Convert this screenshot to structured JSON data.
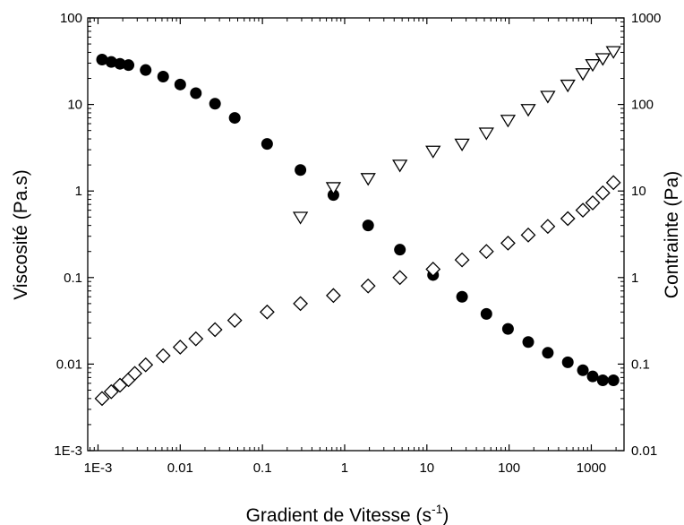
{
  "chart_data": {
    "type": "scatter",
    "title": "",
    "xlabel": "Gradient de Vitesse (s",
    "xlabel_sup": "-1",
    "xlabel_close": ")",
    "ylabel": "Viscosité (Pa.s)",
    "y2label": "Contrainte (Pa)",
    "x_scale": "log",
    "y_scale": "log",
    "y2_scale": "log",
    "xlim": [
      0.00075,
      2500
    ],
    "ylim": [
      0.001,
      100
    ],
    "y2lim": [
      0.01,
      1000
    ],
    "x_ticks": [
      0.001,
      0.01,
      0.1,
      1,
      10,
      100,
      1000
    ],
    "x_tick_labels": [
      "1E-3",
      "0.01",
      "0.1",
      "1",
      "10",
      "100",
      "1000"
    ],
    "y_ticks": [
      0.001,
      0.01,
      0.1,
      1,
      10,
      100
    ],
    "y_tick_labels": [
      "1E-3",
      "0.01",
      "0.1",
      "1",
      "10",
      "100"
    ],
    "y2_ticks": [
      0.01,
      0.1,
      1,
      10,
      100,
      1000
    ],
    "y2_tick_labels": [
      "0.01",
      "0.1",
      "1",
      "10",
      "100",
      "1000"
    ],
    "grid": false,
    "series": [
      {
        "marker": "filled-circle",
        "axis": "left",
        "color": "#000000",
        "points": [
          [
            0.00112,
            33
          ],
          [
            0.00145,
            31
          ],
          [
            0.00185,
            29.5
          ],
          [
            0.00235,
            28.5
          ],
          [
            0.0038,
            25
          ],
          [
            0.0062,
            21
          ],
          [
            0.01,
            17
          ],
          [
            0.0155,
            13.5
          ],
          [
            0.0265,
            10.2
          ],
          [
            0.046,
            7
          ],
          [
            0.114,
            3.5
          ],
          [
            0.29,
            1.75
          ],
          [
            0.73,
            0.9
          ],
          [
            1.93,
            0.4
          ],
          [
            4.7,
            0.21
          ],
          [
            11.9,
            0.107
          ],
          [
            26.8,
            0.06
          ],
          [
            53,
            0.038
          ],
          [
            97,
            0.0255
          ],
          [
            171,
            0.018
          ],
          [
            296,
            0.0135
          ],
          [
            518,
            0.0105
          ],
          [
            790,
            0.0085
          ],
          [
            1040,
            0.0072
          ],
          [
            1380,
            0.0065
          ],
          [
            1860,
            0.0065
          ]
        ]
      },
      {
        "marker": "open-triangle-down",
        "axis": "right",
        "color": "#000000",
        "points": [
          [
            0.29,
            5
          ],
          [
            0.73,
            11
          ],
          [
            1.93,
            14
          ],
          [
            4.7,
            20
          ],
          [
            11.9,
            29
          ],
          [
            26.8,
            35
          ],
          [
            53,
            47
          ],
          [
            97,
            66
          ],
          [
            171,
            88
          ],
          [
            296,
            125
          ],
          [
            518,
            168
          ],
          [
            790,
            228
          ],
          [
            1040,
            290
          ],
          [
            1380,
            340
          ],
          [
            1860,
            410
          ]
        ]
      },
      {
        "marker": "open-diamond",
        "axis": "right",
        "color": "#000000",
        "points": [
          [
            0.00112,
            0.04
          ],
          [
            0.00145,
            0.048
          ],
          [
            0.00185,
            0.057
          ],
          [
            0.00235,
            0.066
          ],
          [
            0.0028,
            0.078
          ],
          [
            0.0038,
            0.098
          ],
          [
            0.0062,
            0.125
          ],
          [
            0.01,
            0.157
          ],
          [
            0.0155,
            0.196
          ],
          [
            0.0265,
            0.25
          ],
          [
            0.046,
            0.32
          ],
          [
            0.114,
            0.4
          ],
          [
            0.29,
            0.5
          ],
          [
            0.73,
            0.62
          ],
          [
            1.93,
            0.8
          ],
          [
            4.7,
            1
          ],
          [
            11.9,
            1.25
          ],
          [
            26.8,
            1.6
          ],
          [
            53,
            2
          ],
          [
            97,
            2.5
          ],
          [
            171,
            3.1
          ],
          [
            296,
            3.9
          ],
          [
            518,
            4.8
          ],
          [
            790,
            6
          ],
          [
            1040,
            7.3
          ],
          [
            1380,
            9.5
          ],
          [
            1860,
            12.5
          ]
        ]
      }
    ]
  }
}
